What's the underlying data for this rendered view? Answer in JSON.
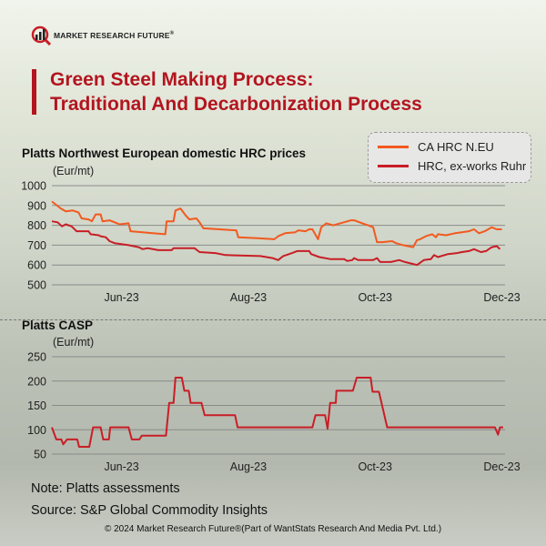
{
  "header": {
    "logo_text": "MARKET RESEARCH FUTURE",
    "logo_reg": "®",
    "title_line1": "Green Steel Making Process:",
    "title_line2": "Traditional And Decarbonization Process"
  },
  "colors": {
    "accent": "#b3151f",
    "orange": "#f2591f",
    "red": "#c81e26",
    "grid": "#8a8a8a"
  },
  "chart_data": [
    {
      "type": "line",
      "title": "Platts Northwest European domestic HRC prices",
      "ylabel": "(Eur/mt)",
      "xlabel": "",
      "x_unit": "month of 2023 (6 = Jun 1)",
      "xlim": [
        4.9,
        12.05
      ],
      "ylim": [
        500,
        1000
      ],
      "yticks": [
        500,
        600,
        700,
        800,
        900,
        1000
      ],
      "xticks": [
        {
          "v": 6,
          "label": "Jun-23"
        },
        {
          "v": 8,
          "label": "Aug-23"
        },
        {
          "v": 10,
          "label": "Oct-23"
        },
        {
          "v": 12,
          "label": "Dec-23"
        }
      ],
      "grid": true,
      "legend": "top-right",
      "series": [
        {
          "name": "CA HRC N.EU",
          "color": "#f2591f",
          "x": [
            4.9,
            5.04,
            5.12,
            5.23,
            5.32,
            5.37,
            5.48,
            5.53,
            5.59,
            5.67,
            5.7,
            5.81,
            5.97,
            6.11,
            6.14,
            6.33,
            6.49,
            6.69,
            6.71,
            6.82,
            6.85,
            6.93,
            7.01,
            7.07,
            7.18,
            7.23,
            7.29,
            7.81,
            7.84,
            8.14,
            8.41,
            8.47,
            8.58,
            8.74,
            8.79,
            8.9,
            8.96,
            9.01,
            9.1,
            9.15,
            9.23,
            9.34,
            9.62,
            9.67,
            9.84,
            9.89,
            9.97,
            10.03,
            10.11,
            10.27,
            10.33,
            10.44,
            10.6,
            10.66,
            10.71,
            10.8,
            10.9,
            10.96,
            10.99,
            11.12,
            11.26,
            11.37,
            11.48,
            11.56,
            11.64,
            11.73,
            11.84,
            11.92,
            12.0
          ],
          "y": [
            920,
            885,
            870,
            875,
            865,
            835,
            830,
            820,
            855,
            855,
            820,
            825,
            805,
            810,
            770,
            765,
            760,
            755,
            820,
            820,
            875,
            885,
            850,
            830,
            835,
            815,
            785,
            775,
            740,
            735,
            730,
            745,
            760,
            765,
            775,
            770,
            780,
            780,
            730,
            790,
            810,
            800,
            825,
            825,
            805,
            800,
            790,
            715,
            715,
            720,
            710,
            700,
            690,
            725,
            730,
            745,
            755,
            740,
            755,
            750,
            760,
            765,
            770,
            780,
            760,
            770,
            790,
            780,
            780
          ]
        },
        {
          "name": "HRC, ex-works Ruhr",
          "color": "#c81e26",
          "x": [
            4.9,
            4.99,
            5.06,
            5.12,
            5.21,
            5.29,
            5.48,
            5.51,
            5.64,
            5.67,
            5.75,
            5.81,
            5.89,
            6.11,
            6.19,
            6.27,
            6.33,
            6.41,
            6.58,
            6.79,
            6.82,
            7.15,
            7.23,
            7.48,
            7.64,
            8.19,
            8.38,
            8.47,
            8.55,
            8.69,
            8.77,
            8.96,
            8.99,
            9.12,
            9.29,
            9.51,
            9.56,
            9.64,
            9.67,
            9.73,
            9.97,
            10.03,
            10.08,
            10.25,
            10.38,
            10.47,
            10.6,
            10.66,
            10.77,
            10.88,
            10.93,
            10.99,
            11.15,
            11.29,
            11.37,
            11.48,
            11.56,
            11.67,
            11.75,
            11.84,
            11.92,
            11.97
          ],
          "y": [
            820,
            815,
            795,
            805,
            795,
            770,
            770,
            755,
            750,
            745,
            740,
            720,
            710,
            700,
            695,
            690,
            680,
            685,
            675,
            675,
            685,
            685,
            665,
            660,
            650,
            645,
            635,
            625,
            645,
            660,
            670,
            670,
            655,
            640,
            630,
            630,
            620,
            625,
            635,
            625,
            625,
            635,
            615,
            615,
            625,
            615,
            605,
            600,
            625,
            630,
            650,
            640,
            655,
            660,
            665,
            670,
            680,
            665,
            670,
            690,
            695,
            680
          ]
        }
      ]
    },
    {
      "type": "line",
      "title": "Platts CASP",
      "ylabel": "(Eur/mt)",
      "xlabel": "",
      "x_unit": "month of 2023 (6 = Jun 1)",
      "xlim": [
        4.9,
        12.05
      ],
      "ylim": [
        50,
        250
      ],
      "yticks": [
        50,
        100,
        150,
        200,
        250
      ],
      "xticks": [
        {
          "v": 6,
          "label": "Jun-23"
        },
        {
          "v": 8,
          "label": "Aug-23"
        },
        {
          "v": 10,
          "label": "Oct-23"
        },
        {
          "v": 12,
          "label": "Dec-23"
        }
      ],
      "grid": true,
      "series": [
        {
          "name": "Platts CASP",
          "color": "#c81e26",
          "x": [
            4.9,
            4.97,
            5.05,
            5.08,
            5.14,
            5.3,
            5.33,
            5.49,
            5.55,
            5.67,
            5.71,
            5.8,
            5.82,
            6.11,
            6.16,
            6.28,
            6.32,
            6.7,
            6.75,
            6.82,
            6.85,
            6.95,
            6.99,
            7.06,
            7.09,
            7.26,
            7.31,
            7.79,
            7.83,
            9.01,
            9.06,
            9.21,
            9.25,
            9.29,
            9.38,
            9.39,
            9.65,
            9.71,
            9.93,
            9.96,
            10.06,
            10.19,
            11.89,
            11.94,
            11.97,
            12.02
          ],
          "y": [
            105,
            80,
            80,
            70,
            80,
            80,
            65,
            65,
            105,
            105,
            80,
            80,
            105,
            105,
            80,
            80,
            88,
            88,
            155,
            155,
            207,
            207,
            180,
            180,
            155,
            155,
            130,
            130,
            105,
            105,
            130,
            130,
            102,
            155,
            155,
            180,
            180,
            207,
            207,
            178,
            178,
            105,
            105,
            90,
            105,
            105
          ]
        }
      ]
    }
  ],
  "footer": {
    "note": "Note: Platts assessments",
    "source": "Source: S&P Global Commodity Insights",
    "copyright": "© 2024 Market Research Future®(Part of WantStats Research And Media Pvt. Ltd.)"
  }
}
